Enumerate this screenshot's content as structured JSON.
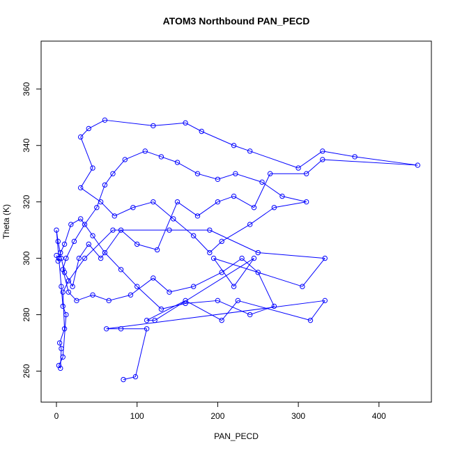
{
  "chart_data": {
    "type": "scatter",
    "title": "ATOM3 Northbound PAN_PECD",
    "xlabel": "PAN_PECD",
    "ylabel": "Theta (K)",
    "xlim": [
      -19,
      465
    ],
    "ylim": [
      249,
      377
    ],
    "xticks": [
      0,
      100,
      200,
      300,
      400
    ],
    "yticks": [
      260,
      280,
      300,
      320,
      340,
      360
    ],
    "grid": false,
    "color": "#0000ff",
    "marker": "open-circle",
    "connected": true,
    "series": [
      {
        "points": [
          [
            83,
            257
          ],
          [
            98,
            258
          ],
          [
            112,
            275
          ],
          [
            80,
            275
          ],
          [
            62,
            275
          ],
          [
            333,
            285
          ],
          [
            315,
            278
          ],
          [
            225,
            285
          ],
          [
            205,
            278
          ],
          [
            160,
            285
          ],
          [
            112,
            278
          ],
          [
            122,
            278
          ],
          [
            245,
            300
          ],
          [
            220,
            290
          ],
          [
            195,
            300
          ],
          [
            305,
            290
          ],
          [
            333,
            300
          ],
          [
            250,
            302
          ],
          [
            190,
            310
          ],
          [
            140,
            310
          ],
          [
            70,
            310
          ],
          [
            35,
            300
          ],
          [
            15,
            292
          ],
          [
            8,
            288
          ],
          [
            10,
            275
          ],
          [
            4,
            270
          ],
          [
            6,
            268
          ],
          [
            5,
            261
          ],
          [
            3,
            262
          ],
          [
            8,
            265
          ],
          [
            12,
            280
          ],
          [
            8,
            283
          ],
          [
            6,
            290
          ],
          [
            3,
            300
          ],
          [
            0,
            310
          ],
          [
            2,
            306
          ],
          [
            6,
            300
          ],
          [
            10,
            295
          ],
          [
            20,
            290
          ],
          [
            28,
            300
          ],
          [
            40,
            305
          ],
          [
            55,
            300
          ],
          [
            80,
            310
          ],
          [
            100,
            305
          ],
          [
            125,
            303
          ],
          [
            150,
            320
          ],
          [
            175,
            315
          ],
          [
            200,
            320
          ],
          [
            220,
            322
          ],
          [
            245,
            318
          ],
          [
            265,
            330
          ],
          [
            310,
            330
          ],
          [
            330,
            335
          ],
          [
            448,
            333
          ],
          [
            370,
            336
          ],
          [
            330,
            338
          ],
          [
            300,
            332
          ],
          [
            240,
            338
          ],
          [
            220,
            340
          ],
          [
            180,
            345
          ],
          [
            160,
            348
          ],
          [
            120,
            347
          ],
          [
            60,
            349
          ],
          [
            40,
            346
          ],
          [
            30,
            343
          ],
          [
            45,
            332
          ],
          [
            30,
            325
          ],
          [
            55,
            320
          ],
          [
            72,
            315
          ],
          [
            95,
            318
          ],
          [
            120,
            320
          ],
          [
            145,
            314
          ],
          [
            170,
            308
          ],
          [
            190,
            302
          ],
          [
            205,
            306
          ],
          [
            240,
            312
          ],
          [
            270,
            318
          ],
          [
            310,
            320
          ],
          [
            280,
            322
          ],
          [
            255,
            327
          ],
          [
            222,
            330
          ],
          [
            200,
            328
          ],
          [
            175,
            330
          ],
          [
            150,
            334
          ],
          [
            130,
            336
          ],
          [
            110,
            338
          ],
          [
            85,
            335
          ],
          [
            70,
            330
          ],
          [
            60,
            326
          ],
          [
            50,
            318
          ],
          [
            35,
            312
          ],
          [
            22,
            306
          ],
          [
            12,
            300
          ],
          [
            8,
            296
          ],
          [
            15,
            288
          ],
          [
            25,
            285
          ],
          [
            45,
            287
          ],
          [
            65,
            285
          ],
          [
            92,
            287
          ],
          [
            120,
            293
          ],
          [
            140,
            288
          ],
          [
            170,
            290
          ],
          [
            205,
            295
          ],
          [
            230,
            300
          ],
          [
            250,
            295
          ],
          [
            270,
            283
          ],
          [
            240,
            280
          ],
          [
            200,
            285
          ],
          [
            160,
            284
          ],
          [
            130,
            282
          ],
          [
            100,
            290
          ],
          [
            80,
            296
          ],
          [
            60,
            302
          ],
          [
            45,
            308
          ],
          [
            30,
            314
          ],
          [
            18,
            312
          ],
          [
            10,
            305
          ],
          [
            5,
            302
          ],
          [
            2,
            299
          ],
          [
            0,
            301
          ]
        ]
      }
    ]
  }
}
